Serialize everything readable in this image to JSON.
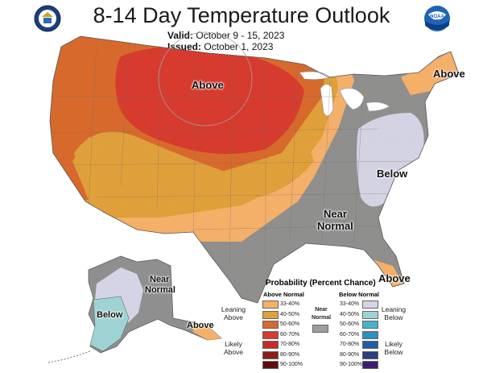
{
  "title": "8-14 Day Temperature Outlook",
  "valid_label": "Valid:",
  "valid_dates": "October 9 - 15, 2023",
  "issued_label": "Issued:",
  "issued_date": "October 1, 2023",
  "logos": {
    "left": "noaa-commerce-seal",
    "right": "noaa-logo"
  },
  "map_labels": {
    "above_north": "Above",
    "above_northeast": "Above",
    "below_east": "Below",
    "near_normal_1": "Near",
    "near_normal_2": "Normal",
    "above_florida": "Above",
    "alaska_near_1": "Near",
    "alaska_near_2": "Normal",
    "alaska_below": "Below",
    "alaska_above": "Above"
  },
  "legend": {
    "title": "Probability (Percent Chance)",
    "above_header": "Above Normal",
    "below_header": "Below Normal",
    "near_header_1": "Near",
    "near_header_2": "Normal",
    "leaning_above_1": "Leaning",
    "leaning_above_2": "Above",
    "likely_above_1": "Likely",
    "likely_above_2": "Above",
    "leaning_below_1": "Leaning",
    "leaning_below_2": "Below",
    "likely_below_1": "Likely",
    "likely_below_2": "Below",
    "above_bins": [
      {
        "label": "33-40%",
        "color": "#f5b06a"
      },
      {
        "label": "40-50%",
        "color": "#e0a03a"
      },
      {
        "label": "50-60%",
        "color": "#d8692c"
      },
      {
        "label": "60-70%",
        "color": "#d73a2e"
      },
      {
        "label": "70-80%",
        "color": "#c42a2a"
      },
      {
        "label": "80-90%",
        "color": "#8e1b1b"
      },
      {
        "label": "90-100%",
        "color": "#5a1010"
      }
    ],
    "near_color": "#9e9e9e",
    "below_bins": [
      {
        "label": "33-40%",
        "color": "#d4d4e6"
      },
      {
        "label": "40-50%",
        "color": "#9fd3d3"
      },
      {
        "label": "50-60%",
        "color": "#45b4c8"
      },
      {
        "label": "60-70%",
        "color": "#2d8fc2"
      },
      {
        "label": "70-80%",
        "color": "#1f5ea8"
      },
      {
        "label": "80-90%",
        "color": "#2a3d82"
      },
      {
        "label": "90-100%",
        "color": "#3c1e6e"
      }
    ]
  }
}
